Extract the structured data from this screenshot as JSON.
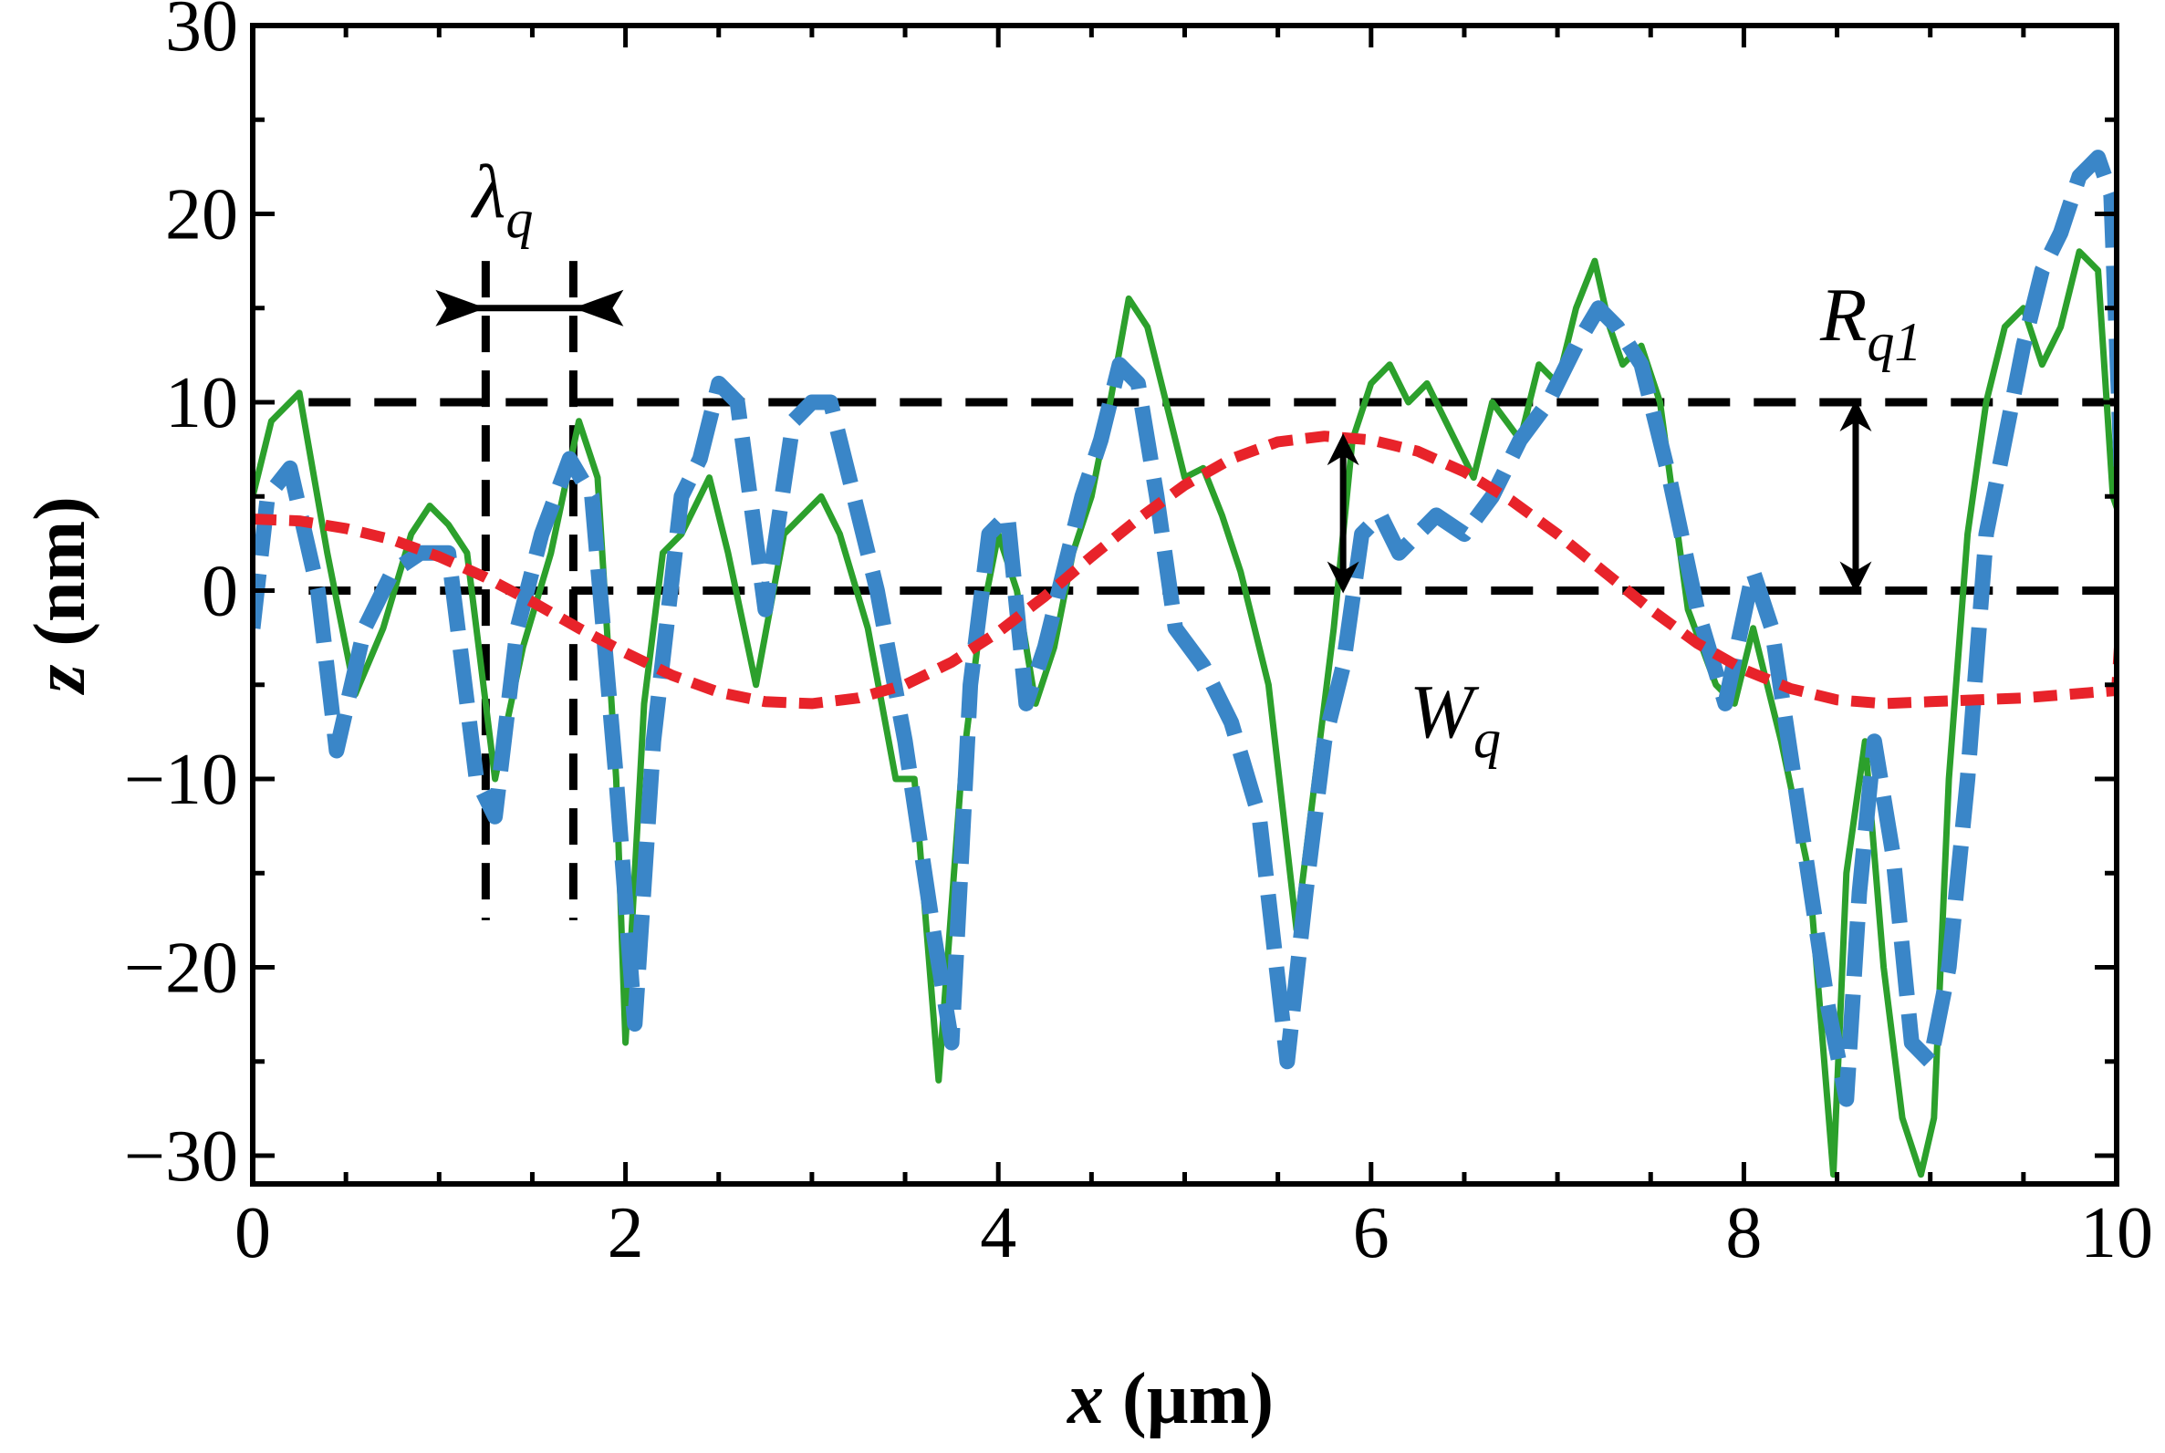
{
  "chart_data": {
    "type": "line",
    "xlabel": {
      "var": "x",
      "unit": " (µm)"
    },
    "ylabel": {
      "var": "z",
      "unit": " (nm)"
    },
    "xlim": [
      0,
      10
    ],
    "ylim": [
      -31.5,
      30
    ],
    "x_ticks": [
      0,
      2,
      4,
      6,
      8,
      10
    ],
    "y_ticks": [
      -30,
      -20,
      -10,
      0,
      10,
      20,
      30
    ],
    "y_tick_labels": [
      "−30",
      "−20",
      "−10",
      "0",
      "10",
      "20",
      "30"
    ],
    "x_minor_step": 0.5,
    "y_minor_step": 5,
    "grid": false,
    "legend": "none",
    "series": [
      {
        "color": "#2ca02c",
        "style": "solid",
        "x": [
          0,
          0.1,
          0.25,
          0.4,
          0.55,
          0.7,
          0.85,
          0.95,
          1.05,
          1.15,
          1.3,
          1.45,
          1.6,
          1.75,
          1.85,
          1.95,
          2.0,
          2.1,
          2.2,
          2.3,
          2.45,
          2.55,
          2.7,
          2.85,
          2.95,
          3.05,
          3.15,
          3.3,
          3.45,
          3.55,
          3.68,
          3.8,
          3.9,
          4.0,
          4.1,
          4.2,
          4.3,
          4.4,
          4.5,
          4.6,
          4.7,
          4.8,
          4.9,
          5.0,
          5.1,
          5.2,
          5.3,
          5.45,
          5.6,
          5.7,
          5.8,
          5.9,
          6.0,
          6.1,
          6.2,
          6.3,
          6.45,
          6.55,
          6.65,
          6.8,
          6.9,
          7.0,
          7.1,
          7.2,
          7.28,
          7.35,
          7.45,
          7.55,
          7.7,
          7.85,
          7.95,
          8.05,
          8.2,
          8.35,
          8.48,
          8.55,
          8.65,
          8.75,
          8.85,
          8.95,
          9.02,
          9.1,
          9.2,
          9.3,
          9.4,
          9.5,
          9.6,
          9.7,
          9.8,
          9.9,
          9.98,
          10.05
        ],
        "y": [
          5,
          9,
          10.5,
          2,
          -5.5,
          -2,
          3,
          4.5,
          3.5,
          2,
          -10,
          -3,
          2,
          9,
          6,
          -10,
          -24,
          -6,
          2,
          3,
          6,
          2,
          -5,
          3,
          4,
          5,
          3,
          -2,
          -10,
          -10,
          -26,
          -10,
          -2,
          3,
          0,
          -6,
          -3,
          2,
          5,
          10,
          15.5,
          14,
          10,
          6,
          6.5,
          4,
          1,
          -5,
          -18,
          -10,
          -2,
          8,
          11,
          12,
          10,
          11,
          8,
          6,
          10,
          8,
          12,
          11,
          15,
          17.5,
          14,
          12,
          13,
          10,
          -1,
          -5,
          -6,
          -2,
          -8,
          -15,
          -31,
          -15,
          -8,
          -20,
          -28,
          -31,
          -28,
          -10,
          3,
          10,
          14,
          15,
          12,
          14,
          18,
          17,
          5,
          3
        ]
      },
      {
        "color": "#3a86c8",
        "style": "dashed",
        "x": [
          0,
          0.08,
          0.2,
          0.35,
          0.45,
          0.6,
          0.75,
          0.9,
          1.05,
          1.2,
          1.3,
          1.42,
          1.55,
          1.7,
          1.82,
          1.95,
          2.05,
          2.15,
          2.3,
          2.4,
          2.5,
          2.6,
          2.75,
          2.9,
          3.0,
          3.1,
          3.2,
          3.35,
          3.5,
          3.65,
          3.75,
          3.85,
          3.95,
          4.05,
          4.15,
          4.25,
          4.35,
          4.45,
          4.55,
          4.65,
          4.75,
          4.85,
          4.95,
          5.1,
          5.25,
          5.4,
          5.55,
          5.65,
          5.75,
          5.85,
          5.95,
          6.05,
          6.15,
          6.25,
          6.35,
          6.5,
          6.65,
          6.8,
          6.95,
          7.1,
          7.22,
          7.32,
          7.45,
          7.6,
          7.75,
          7.9,
          8.05,
          8.15,
          8.3,
          8.45,
          8.55,
          8.62,
          8.7,
          8.8,
          8.9,
          9.0,
          9.1,
          9.2,
          9.3,
          9.4,
          9.5,
          9.6,
          9.7,
          9.8,
          9.9,
          9.97,
          10.05
        ],
        "y": [
          -2,
          5,
          6.5,
          0,
          -8.5,
          -2,
          1,
          2,
          2,
          -10,
          -12,
          -2,
          3,
          7,
          5,
          -10,
          -23,
          -8,
          5,
          7,
          11,
          10,
          -1,
          9,
          10,
          10,
          6,
          0,
          -8,
          -18,
          -24,
          -5,
          3,
          4,
          -6,
          -3,
          1,
          5,
          8,
          12,
          11,
          5,
          -2,
          -4,
          -7,
          -12,
          -25,
          -16,
          -8,
          -4,
          3,
          4,
          2,
          3,
          4,
          3,
          5,
          8,
          10,
          13,
          15,
          14,
          12,
          6,
          -1,
          -6,
          1,
          -2,
          -12,
          -22,
          -27,
          -16,
          -8,
          -14,
          -24,
          -25,
          -20,
          -10,
          3,
          8,
          13,
          17,
          19,
          22,
          23,
          21,
          0
        ]
      },
      {
        "color": "#e8232a",
        "style": "short-dash",
        "x": [
          0,
          0.25,
          0.5,
          0.75,
          1.0,
          1.25,
          1.5,
          1.75,
          2.0,
          2.25,
          2.5,
          2.75,
          3.0,
          3.25,
          3.5,
          3.75,
          4.0,
          4.25,
          4.5,
          4.75,
          5.0,
          5.25,
          5.5,
          5.75,
          6.0,
          6.25,
          6.5,
          6.75,
          7.0,
          7.25,
          7.5,
          7.75,
          8.0,
          8.25,
          8.5,
          8.75,
          9.0,
          9.25,
          9.5,
          9.75,
          10.0,
          10.05
        ],
        "y": [
          3.8,
          3.7,
          3.3,
          2.7,
          1.8,
          0.7,
          -0.6,
          -2.0,
          -3.3,
          -4.5,
          -5.4,
          -5.9,
          -6.0,
          -5.7,
          -5.0,
          -3.8,
          -2.2,
          -0.3,
          1.8,
          3.8,
          5.6,
          7.0,
          7.9,
          8.2,
          8.0,
          7.4,
          6.3,
          4.8,
          3.0,
          1.0,
          -1.0,
          -2.8,
          -4.2,
          -5.2,
          -5.8,
          -6.0,
          -5.9,
          -5.8,
          -5.7,
          -5.5,
          -5.3,
          2.5
        ]
      }
    ],
    "annotations": {
      "lambda": {
        "base": "λ",
        "sub": "q"
      },
      "rq": {
        "base": "R",
        "sub": "q1"
      },
      "wq": {
        "base": "W",
        "sub": "q"
      }
    },
    "reference_lines": {
      "horizontal_y": [
        0,
        10
      ],
      "lambda_x": [
        1.25,
        1.72
      ],
      "wq_x": 5.85,
      "rq_x": 8.6
    }
  }
}
